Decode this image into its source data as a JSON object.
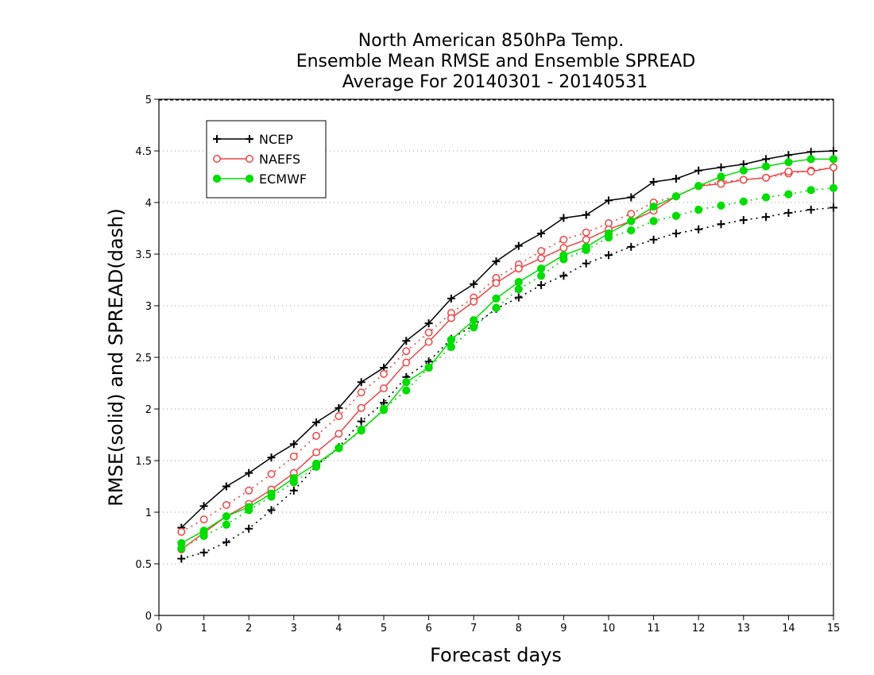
{
  "chart_data": {
    "type": "line",
    "title_lines": [
      "North American 850hPa Temp.",
      "Ensemble Mean RMSE and Ensemble SPREAD",
      "Average For 20140301 - 20140531"
    ],
    "xlabel": "Forecast days",
    "ylabel": "RMSE(solid) and SPREAD(dash)",
    "xlim": [
      0,
      15
    ],
    "ylim": [
      0,
      5
    ],
    "xticks": [
      0,
      1,
      2,
      3,
      4,
      5,
      6,
      7,
      8,
      9,
      10,
      11,
      12,
      13,
      14,
      15
    ],
    "yticks": [
      0,
      0.5,
      1,
      1.5,
      2,
      2.5,
      3,
      3.5,
      4,
      4.5,
      5
    ],
    "ytick_labels": [
      "0",
      "0.5",
      "1",
      "1.5",
      "2",
      "2.5",
      "3",
      "3.5",
      "4",
      "4.5",
      "5"
    ],
    "grid": true,
    "legend_position": "top-left",
    "x": [
      0.5,
      1,
      1.5,
      2,
      2.5,
      3,
      3.5,
      4,
      4.5,
      5,
      5.5,
      6,
      6.5,
      7,
      7.5,
      8,
      8.5,
      9,
      9.5,
      10,
      10.5,
      11,
      11.5,
      12,
      12.5,
      13,
      13.5,
      14,
      14.5,
      15
    ],
    "series": [
      {
        "name": "NCEP",
        "color": "#000000",
        "marker": "plus",
        "rmse": [
          0.85,
          1.06,
          1.25,
          1.38,
          1.53,
          1.66,
          1.87,
          2.01,
          2.26,
          2.4,
          2.66,
          2.83,
          3.07,
          3.21,
          3.43,
          3.58,
          3.7,
          3.85,
          3.88,
          4.02,
          4.05,
          4.2,
          4.23,
          4.31,
          4.34,
          4.37,
          4.42,
          4.46,
          4.49,
          4.5
        ],
        "spread": [
          0.55,
          0.61,
          0.71,
          0.84,
          1.02,
          1.21,
          1.45,
          1.63,
          1.88,
          2.06,
          2.31,
          2.46,
          2.68,
          2.81,
          2.97,
          3.08,
          3.2,
          3.29,
          3.41,
          3.49,
          3.57,
          3.64,
          3.7,
          3.74,
          3.79,
          3.83,
          3.86,
          3.9,
          3.93,
          3.95
        ]
      },
      {
        "name": "NAEFS",
        "color": "#ee4444",
        "marker": "open-circle",
        "rmse": [
          0.64,
          0.8,
          0.96,
          1.08,
          1.22,
          1.38,
          1.58,
          1.76,
          2.01,
          2.2,
          2.45,
          2.65,
          2.88,
          3.04,
          3.22,
          3.36,
          3.46,
          3.56,
          3.64,
          3.74,
          3.82,
          3.92,
          4.06,
          4.16,
          4.18,
          4.22,
          4.24,
          4.3,
          4.3,
          4.34
        ],
        "spread": [
          0.81,
          0.93,
          1.07,
          1.21,
          1.37,
          1.54,
          1.74,
          1.93,
          2.16,
          2.34,
          2.56,
          2.74,
          2.93,
          3.08,
          3.27,
          3.4,
          3.53,
          3.64,
          3.71,
          3.8,
          3.89,
          4.0,
          4.06,
          4.16,
          4.2,
          4.22,
          4.24,
          4.28,
          4.31,
          4.34
        ]
      },
      {
        "name": "ECMWF",
        "color": "#00dd00",
        "marker": "filled-circle",
        "rmse": [
          0.7,
          0.82,
          0.96,
          1.05,
          1.18,
          1.33,
          1.47,
          1.62,
          1.8,
          1.99,
          2.26,
          2.4,
          2.67,
          2.86,
          3.07,
          3.23,
          3.36,
          3.49,
          3.57,
          3.7,
          3.82,
          3.96,
          4.06,
          4.16,
          4.25,
          4.31,
          4.35,
          4.39,
          4.42,
          4.42
        ],
        "spread": [
          0.65,
          0.77,
          0.88,
          1.02,
          1.15,
          1.29,
          1.44,
          1.62,
          1.79,
          2.0,
          2.18,
          2.4,
          2.6,
          2.79,
          2.98,
          3.16,
          3.29,
          3.45,
          3.54,
          3.66,
          3.73,
          3.82,
          3.87,
          3.93,
          3.97,
          4.01,
          4.05,
          4.08,
          4.12,
          4.14
        ]
      }
    ]
  }
}
